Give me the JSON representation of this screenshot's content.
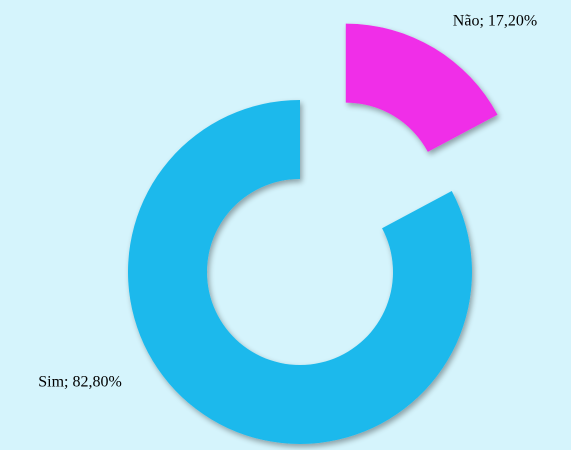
{
  "chart_data": {
    "type": "donut",
    "values": [
      17.2,
      82.8
    ],
    "value_labels": [
      "Não; 17,20%",
      "Sim; 82,80%"
    ],
    "colors": [
      "#f02ee8",
      "#1eb9ec"
    ]
  }
}
